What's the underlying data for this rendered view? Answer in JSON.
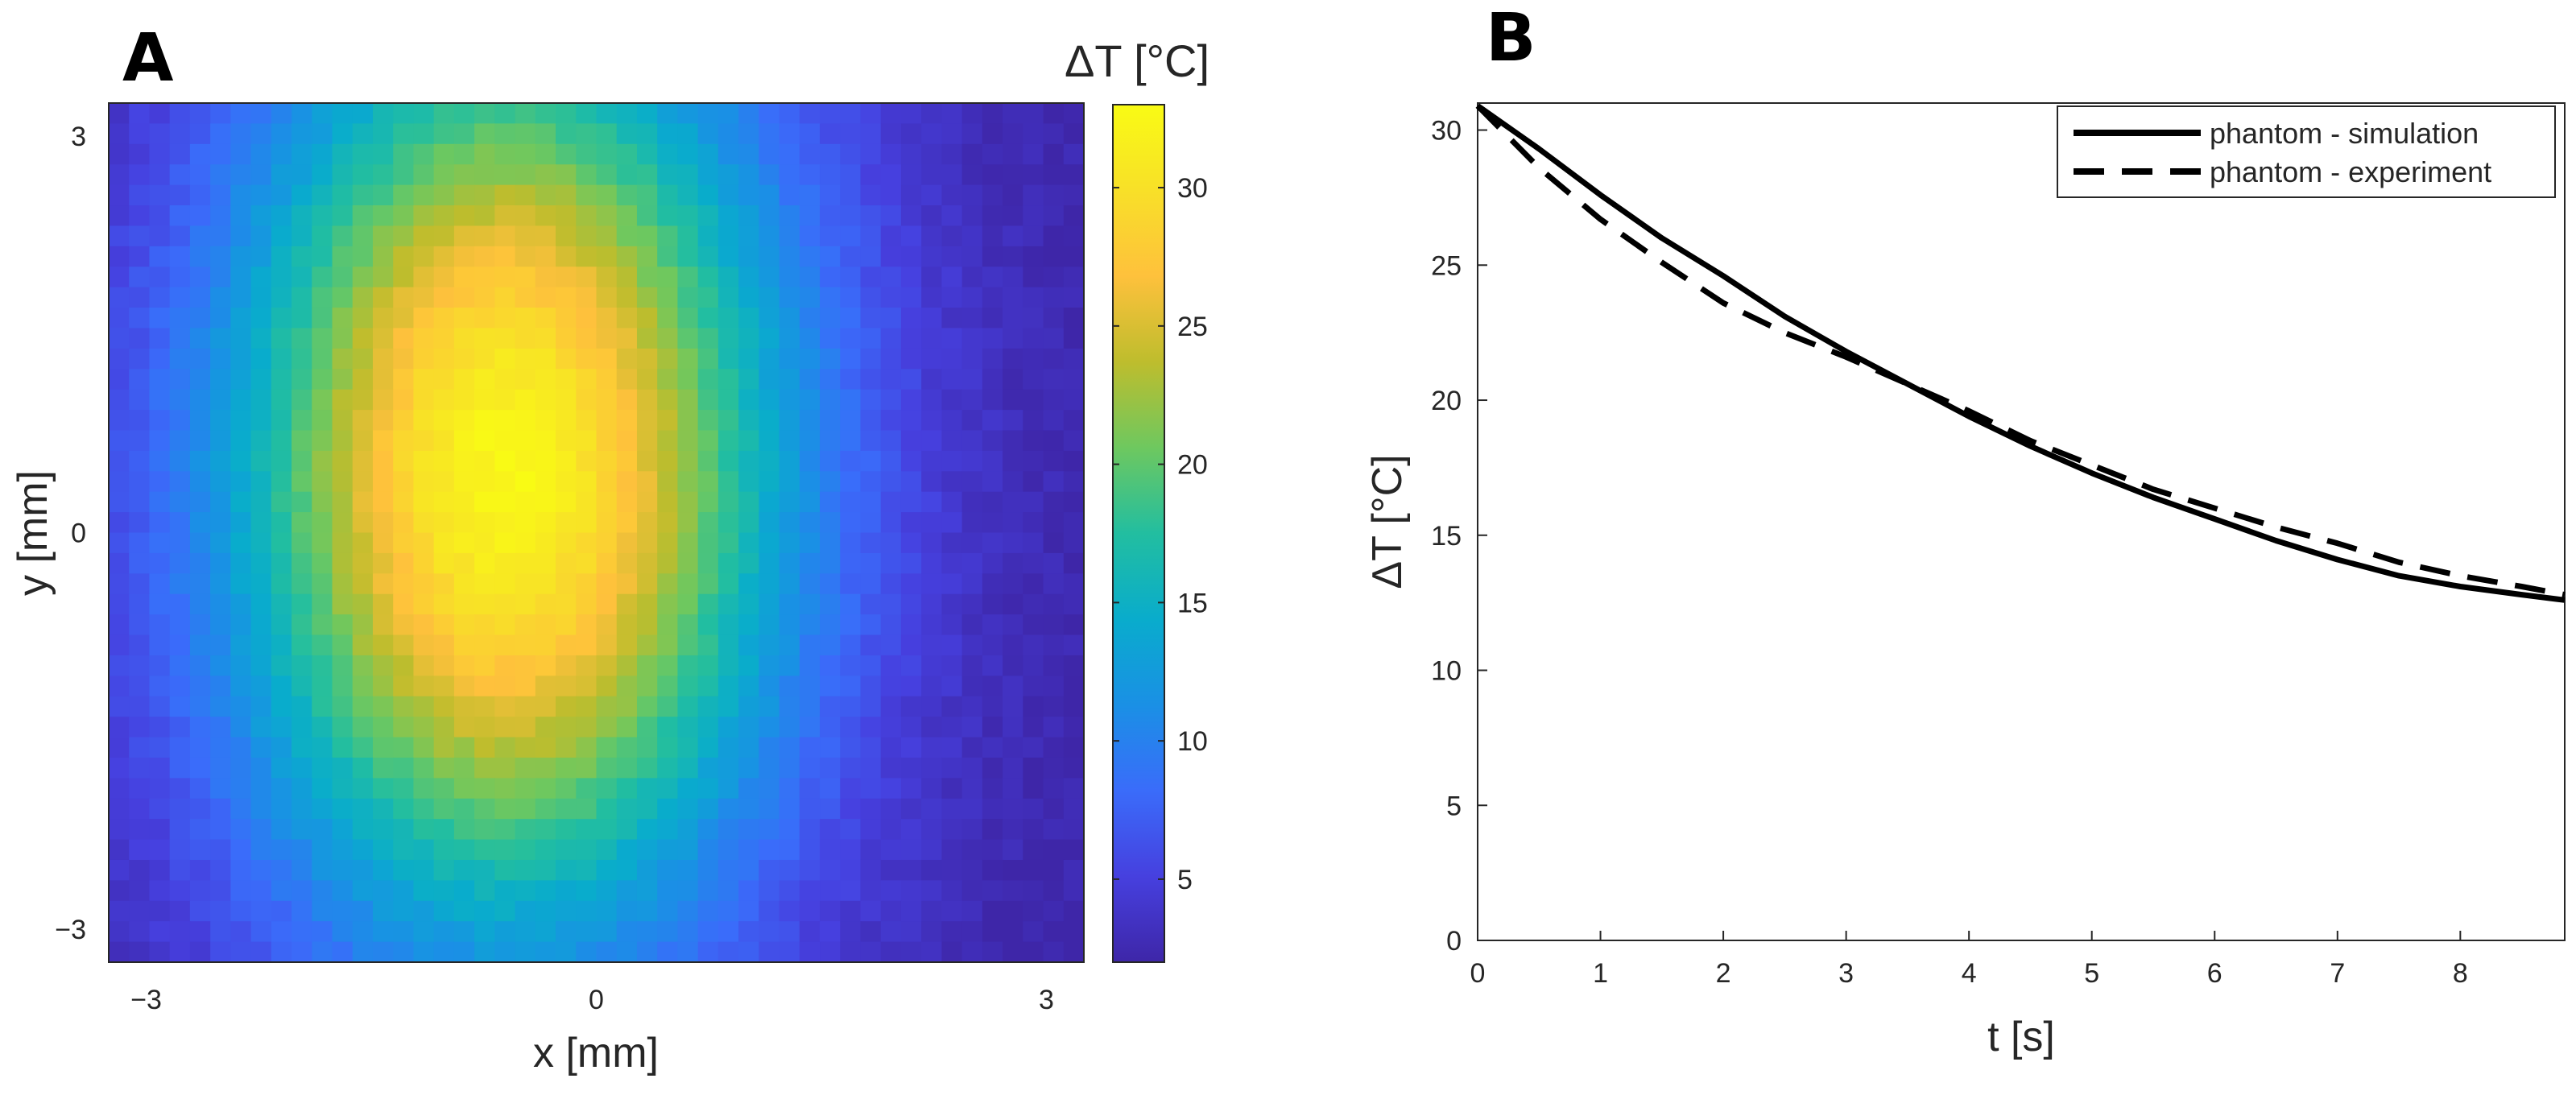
{
  "chart_data": [
    {
      "panel": "A",
      "type": "heatmap",
      "colorbar_title": "ΔT [°C]",
      "xlabel": "x [mm]",
      "ylabel": "y [mm]",
      "xlim": [
        -3.25,
        3.25
      ],
      "ylim": [
        -3.25,
        3.25
      ],
      "x_ticks": [
        {
          "value": -3,
          "label": "−3"
        },
        {
          "value": 0,
          "label": "0"
        },
        {
          "value": 3,
          "label": "3"
        }
      ],
      "y_ticks": [
        {
          "value": 3,
          "label": "3"
        },
        {
          "value": 0,
          "label": "0"
        },
        {
          "value": -3,
          "label": "−3"
        }
      ],
      "grid_size": [
        48,
        42
      ],
      "peak": {
        "x": -0.6,
        "y": 0.45,
        "value": 32.5
      },
      "spread": {
        "sigma_x": 1.3,
        "sigma_y": 2.45
      },
      "baseline": 2.0,
      "clim": [
        2,
        33
      ],
      "colormap": "parula",
      "colorbar_ticks": [
        5,
        10,
        15,
        20,
        25,
        30
      ]
    },
    {
      "panel": "B",
      "type": "line",
      "xlabel": "t [s]",
      "ylabel": "ΔT [°C]",
      "xlim": [
        0,
        8.85
      ],
      "ylim": [
        0,
        31
      ],
      "x_ticks": [
        0,
        1,
        2,
        3,
        4,
        5,
        6,
        7,
        8
      ],
      "y_ticks": [
        0,
        5,
        10,
        15,
        20,
        25,
        30
      ],
      "legend_location": "top-right",
      "series": [
        {
          "name": "phantom - simulation",
          "style": "solid",
          "x": [
            0,
            0.5,
            1,
            1.5,
            2,
            2.5,
            3,
            3.5,
            4,
            4.5,
            5,
            5.5,
            6,
            6.5,
            7,
            7.5,
            8,
            8.5,
            8.85
          ],
          "y": [
            30.9,
            29.3,
            27.6,
            26.0,
            24.6,
            23.1,
            21.8,
            20.6,
            19.4,
            18.3,
            17.3,
            16.4,
            15.6,
            14.8,
            14.1,
            13.5,
            13.1,
            12.8,
            12.6
          ]
        },
        {
          "name": "phantom - experiment",
          "style": "dashed",
          "x": [
            0,
            0.5,
            1,
            1.5,
            2,
            2.5,
            3,
            3.5,
            4,
            4.5,
            5,
            5.5,
            6,
            6.5,
            7,
            7.5,
            8,
            8.5,
            8.85
          ],
          "y": [
            30.9,
            28.6,
            26.7,
            25.1,
            23.6,
            22.5,
            21.6,
            20.6,
            19.6,
            18.5,
            17.6,
            16.7,
            16.0,
            15.3,
            14.7,
            14.0,
            13.5,
            13.1,
            12.8
          ]
        }
      ]
    }
  ],
  "panel_labels": {
    "a": "A",
    "b": "B"
  }
}
